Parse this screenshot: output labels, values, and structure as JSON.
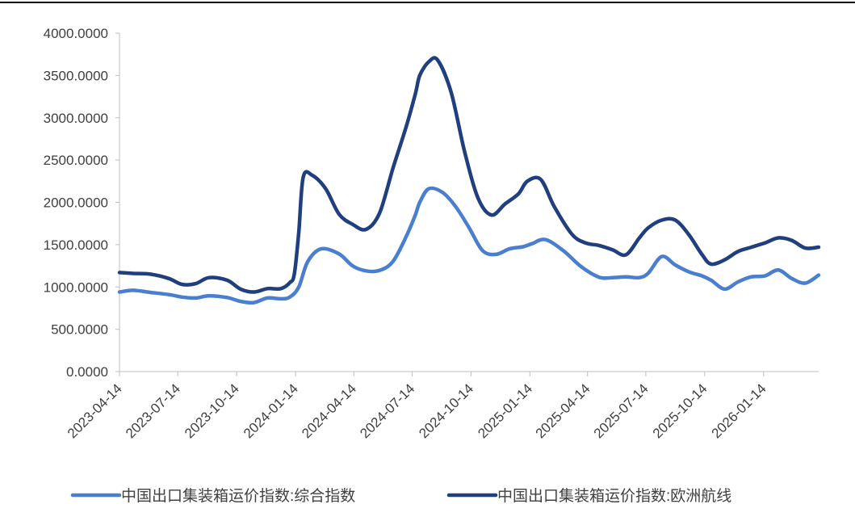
{
  "chart_data": {
    "type": "line",
    "title": "",
    "xlabel": "",
    "ylabel": "",
    "ylim": [
      0,
      4000
    ],
    "y_ticks": [
      "0.0000",
      "500.0000",
      "1000.0000",
      "1500.0000",
      "2000.0000",
      "2500.0000",
      "3000.0000",
      "3500.0000",
      "4000.0000"
    ],
    "x_ticks": [
      "2023-04-14",
      "2023-07-14",
      "2023-10-14",
      "2024-01-14",
      "2024-04-14",
      "2024-07-14",
      "2024-10-14",
      "2025-01-14",
      "2025-04-14",
      "2025-07-14",
      "2025-10-14",
      "2026-01-14"
    ],
    "x_range": [
      "2023-04-14",
      "2026-04-10"
    ],
    "grid": false,
    "legend_position": "bottom",
    "series": [
      {
        "name": "中国出口集装箱运价指数:综合指数",
        "color": "#4a7fd0",
        "x": [
          "2023-04-14",
          "2023-05-05",
          "2023-06-02",
          "2023-06-30",
          "2023-07-21",
          "2023-08-11",
          "2023-09-01",
          "2023-09-29",
          "2023-10-20",
          "2023-11-10",
          "2023-12-01",
          "2023-12-22",
          "2024-01-05",
          "2024-01-19",
          "2024-02-02",
          "2024-02-23",
          "2024-03-22",
          "2024-04-12",
          "2024-05-03",
          "2024-05-24",
          "2024-06-14",
          "2024-07-05",
          "2024-07-19",
          "2024-07-26",
          "2024-08-09",
          "2024-08-30",
          "2024-09-20",
          "2024-10-11",
          "2024-11-01",
          "2024-11-22",
          "2024-12-13",
          "2025-01-03",
          "2025-01-17",
          "2025-02-07",
          "2025-03-07",
          "2025-04-04",
          "2025-05-02",
          "2025-05-23",
          "2025-06-13",
          "2025-07-04",
          "2025-07-18",
          "2025-08-08",
          "2025-08-29",
          "2025-09-19",
          "2025-10-10",
          "2025-10-24",
          "2025-11-14",
          "2025-12-05",
          "2025-12-26",
          "2026-01-16",
          "2026-02-06",
          "2026-02-27",
          "2026-03-20",
          "2026-04-10"
        ],
        "y": [
          940,
          960,
          935,
          910,
          880,
          870,
          895,
          875,
          830,
          815,
          870,
          860,
          880,
          1000,
          1300,
          1450,
          1390,
          1250,
          1190,
          1195,
          1300,
          1600,
          1850,
          2000,
          2160,
          2120,
          1950,
          1700,
          1430,
          1385,
          1450,
          1475,
          1510,
          1560,
          1430,
          1240,
          1115,
          1110,
          1120,
          1110,
          1165,
          1360,
          1260,
          1180,
          1130,
          1080,
          975,
          1060,
          1120,
          1130,
          1200,
          1100,
          1045,
          1140
        ]
      },
      {
        "name": "中国出口集装箱运价指数:欧洲航线",
        "color": "#1f3f7f",
        "x": [
          "2023-04-14",
          "2023-05-05",
          "2023-06-02",
          "2023-06-30",
          "2023-07-21",
          "2023-08-11",
          "2023-09-01",
          "2023-09-29",
          "2023-10-20",
          "2023-11-10",
          "2023-12-01",
          "2023-12-22",
          "2024-01-05",
          "2024-01-12",
          "2024-01-19",
          "2024-01-26",
          "2024-02-09",
          "2024-03-01",
          "2024-03-22",
          "2024-04-12",
          "2024-05-03",
          "2024-05-24",
          "2024-06-14",
          "2024-07-05",
          "2024-07-19",
          "2024-07-26",
          "2024-08-09",
          "2024-08-23",
          "2024-09-13",
          "2024-10-04",
          "2024-10-25",
          "2024-11-15",
          "2024-12-06",
          "2024-12-27",
          "2025-01-10",
          "2025-01-31",
          "2025-02-21",
          "2025-03-21",
          "2025-04-11",
          "2025-05-02",
          "2025-05-23",
          "2025-06-13",
          "2025-07-04",
          "2025-07-18",
          "2025-08-08",
          "2025-08-29",
          "2025-09-19",
          "2025-10-10",
          "2025-10-24",
          "2025-11-14",
          "2025-12-05",
          "2025-12-26",
          "2026-01-16",
          "2026-02-06",
          "2026-02-27",
          "2026-03-20",
          "2026-04-10"
        ],
        "y": [
          1170,
          1160,
          1150,
          1100,
          1030,
          1040,
          1110,
          1080,
          975,
          940,
          980,
          980,
          1050,
          1150,
          1650,
          2300,
          2320,
          2160,
          1860,
          1740,
          1680,
          1870,
          2400,
          2900,
          3280,
          3500,
          3660,
          3680,
          3300,
          2600,
          2050,
          1850,
          1980,
          2100,
          2250,
          2270,
          1950,
          1620,
          1520,
          1490,
          1440,
          1380,
          1580,
          1700,
          1790,
          1790,
          1620,
          1380,
          1270,
          1320,
          1420,
          1470,
          1520,
          1580,
          1550,
          1460,
          1470
        ]
      }
    ]
  }
}
